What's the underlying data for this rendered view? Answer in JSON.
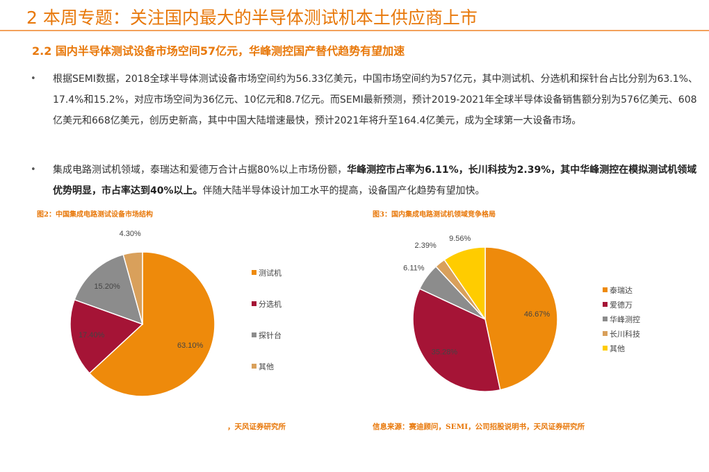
{
  "header": {
    "title": "2 本周专题：关注国内最大的半导体测试机本土供应商上市",
    "subtitle": "2.2 国内半导体测试设备市场空间57亿元，华峰测控国产替代趋势有望加速"
  },
  "bullets": [
    {
      "marker": "•",
      "segments": [
        {
          "text": "根据SEMI数据，2018全球半导体测试设备市场空间约为56.33亿美元，中国市场空间约为57亿元，其中测试机、分选机和探针台占比分别为63.1%、17.4%和15.2%，对应市场空间为36亿元、10亿元和8.7亿元。而SEMI最新预测，预计2019-2021年全球半导体设备销售额分别为576亿美元、608亿美元和668亿美元，创历史新高，其中中国大陆增速最快，预计2021年将升至164.4亿美元，成为全球第一大设备市场。",
          "bold": false
        }
      ]
    },
    {
      "marker": "•",
      "segments": [
        {
          "text": "集成电路测试机领域，泰瑞达和爱德万合计占据80%以上市场份额，",
          "bold": false
        },
        {
          "text": "华峰测控市占率为6.11%，长川科技为2.39%，其中华峰测控在模拟测试机领域优势明显，市占率达到40%以上。",
          "bold": true
        },
        {
          "text": "伴随大陆半导体设计加工水平的提高，设备国产化趋势有望加快。",
          "bold": false
        }
      ]
    }
  ],
  "figures": [
    {
      "title": "图2：中国集成电路测试设备市场结构",
      "source": "，天风证券研究所"
    },
    {
      "title": "图3：国内集成电路测试机领域竞争格局",
      "source": "信息来源：赛迪顾问，SEMI，公司招股说明书，天风证券研究所"
    }
  ],
  "chart_data": [
    {
      "type": "pie",
      "title": "图2：中国集成电路测试设备市场结构",
      "legend_position": "right",
      "slices": [
        {
          "label": "测试机",
          "value": 63.1,
          "display": "63.10%",
          "color": "#EE8A0B"
        },
        {
          "label": "分选机",
          "value": 17.4,
          "display": "17.40%",
          "color": "#A51436"
        },
        {
          "label": "探针台",
          "value": 15.2,
          "display": "15.20%",
          "color": "#8C8C8C"
        },
        {
          "label": "其他",
          "value": 4.3,
          "display": "4.30%",
          "color": "#D9A05B"
        }
      ]
    },
    {
      "type": "pie",
      "title": "图3：国内集成电路测试机领域竞争格局",
      "legend_position": "right",
      "slices": [
        {
          "label": "泰瑞达",
          "value": 46.67,
          "display": "46.67%",
          "color": "#EE8A0B"
        },
        {
          "label": "爱德万",
          "value": 35.28,
          "display": "35.28%",
          "color": "#A51436"
        },
        {
          "label": "华峰测控",
          "value": 6.11,
          "display": "6.11%",
          "color": "#8C8C8C"
        },
        {
          "label": "长川科技",
          "value": 2.39,
          "display": "2.39%",
          "color": "#D9A05B"
        },
        {
          "label": "其他",
          "value": 9.56,
          "display": "9.56%",
          "color": "#FFCC00"
        }
      ]
    }
  ]
}
